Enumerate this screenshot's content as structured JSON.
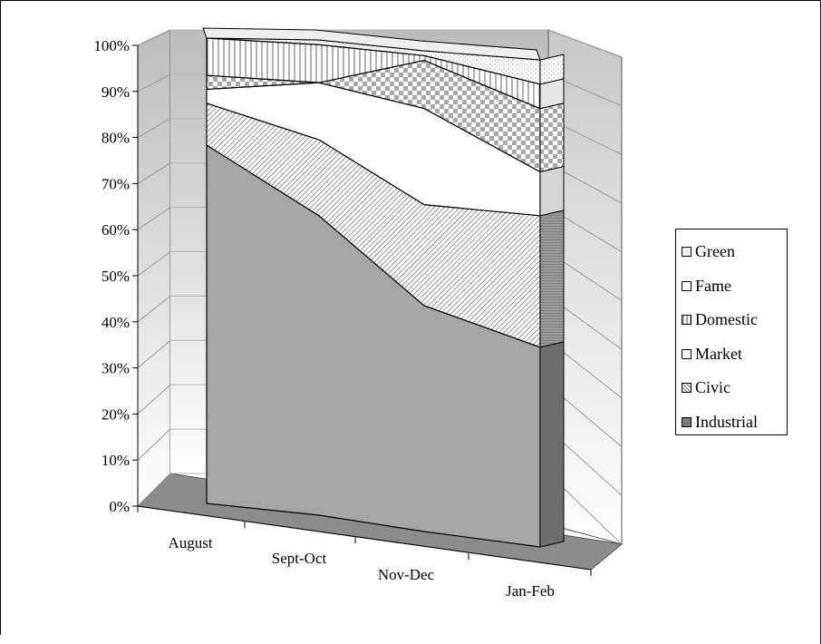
{
  "chart_data": {
    "type": "area",
    "stacked": true,
    "three_d": true,
    "categories": [
      "August",
      "Sept-Oct",
      "Nov-Dec",
      "Jan-Feb"
    ],
    "y_ticks": [
      "0%",
      "10%",
      "20%",
      "30%",
      "40%",
      "50%",
      "60%",
      "70%",
      "80%",
      "90%",
      "100%"
    ],
    "ylim": [
      0,
      100
    ],
    "series": [
      {
        "name": "Industrial",
        "values": [
          77,
          63,
          47,
          41
        ],
        "pattern": "solid-dark-gray"
      },
      {
        "name": "Civic",
        "values": [
          9,
          16,
          21,
          27
        ],
        "pattern": "diagonal-hatch"
      },
      {
        "name": "Market",
        "values": [
          3,
          12,
          20,
          9
        ],
        "pattern": "white"
      },
      {
        "name": "Domestic",
        "values": [
          3,
          0,
          10,
          13
        ],
        "pattern": "checker"
      },
      {
        "name": "Fame",
        "values": [
          8,
          8,
          1,
          5
        ],
        "pattern": "vertical-lines"
      },
      {
        "name": "Green",
        "values": [
          0,
          1,
          1,
          5
        ],
        "pattern": "speckled"
      }
    ],
    "legend_position": "right",
    "grid": true
  },
  "legend": {
    "items": [
      {
        "label": "Green",
        "swatch": "speckled"
      },
      {
        "label": "Fame",
        "swatch": "vertical-lines"
      },
      {
        "label": "Domestic",
        "swatch": "checker"
      },
      {
        "label": "Market",
        "swatch": "white"
      },
      {
        "label": "Civic",
        "swatch": "diagonal-hatch"
      },
      {
        "label": "Industrial",
        "swatch": "solid-dark-gray"
      }
    ]
  },
  "colors": {
    "wall_light": "#f4f4f4",
    "wall_dark": "#bdbdbd",
    "floor": "#8a8a8a",
    "industrial_fill": "#a6a6a6",
    "industrial_side": "#6e6e6e",
    "outline": "#000000"
  }
}
